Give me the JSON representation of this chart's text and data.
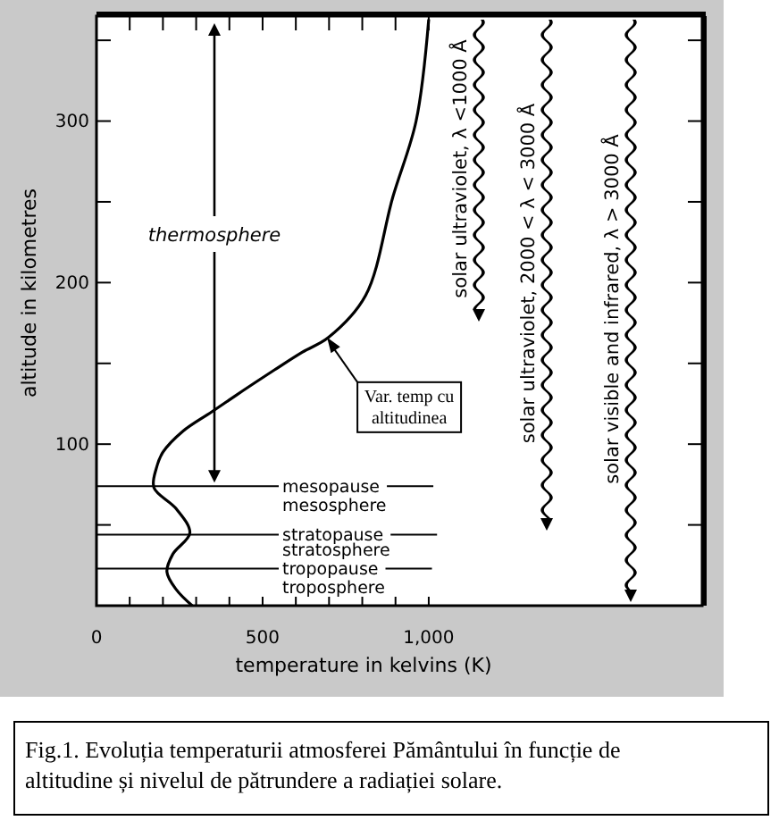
{
  "chart_data": {
    "type": "line",
    "xlabel": "temperature in kelvins (K)",
    "ylabel": "altitude in kilometres",
    "xlim": [
      0,
      1823
    ],
    "ylim": [
      0,
      365
    ],
    "xticks": [
      0,
      {
        "value": 100,
        "label": null
      },
      {
        "value": 200,
        "label": null
      },
      {
        "value": 300,
        "label": null
      },
      {
        "value": 400,
        "label": null
      },
      500,
      {
        "value": 600,
        "label": null
      },
      {
        "value": 700,
        "label": null
      },
      {
        "value": 800,
        "label": null
      },
      {
        "value": 900,
        "label": null
      },
      {
        "value": 1000,
        "label": "1,000"
      }
    ],
    "yticks": [
      {
        "value": 50,
        "label": null
      },
      100,
      {
        "value": 150,
        "label": null
      },
      200,
      {
        "value": 250,
        "label": null
      },
      300,
      {
        "value": 350,
        "label": null
      }
    ],
    "series": [
      {
        "color": "#000000",
        "x": [
          288,
          240,
          212,
          230,
          281,
          240,
          173,
          180,
          200,
          260,
          347,
          440,
          536,
          620,
          698,
          810,
          892,
          962,
          1000
        ],
        "values": [
          0,
          10,
          21,
          32,
          45,
          60,
          73,
          85,
          95,
          108,
          120,
          133,
          146,
          157,
          166,
          192,
          253,
          300,
          363
        ]
      }
    ],
    "marker": "none",
    "line_style": "solid",
    "ref_lines": [
      {
        "axis": "y",
        "value": 74,
        "label": "mesopause",
        "color": "#000000"
      },
      {
        "axis": "y",
        "value": 44,
        "label": "stratopause",
        "color": "#000000"
      },
      {
        "axis": "y",
        "value": 23,
        "label": "tropopause",
        "color": "#000000"
      }
    ],
    "annotations": [
      "mesosphere",
      "stratosphere",
      "troposphere",
      "thermosphere",
      "solar ultraviolet, λ <1000 Å",
      "solar ultraviolet, 2000 < λ < 3000 Å",
      "solar visible and infrared, λ > 3000 Å",
      {
        "text": "Var. temp cu altitudinea",
        "x": 694,
        "y": 166
      },
      "Fig.1. Evoluția temperaturii atmosferei Pământului în funcție de altitudine și nivelul de pătrundere a radiației solare."
    ]
  }
}
